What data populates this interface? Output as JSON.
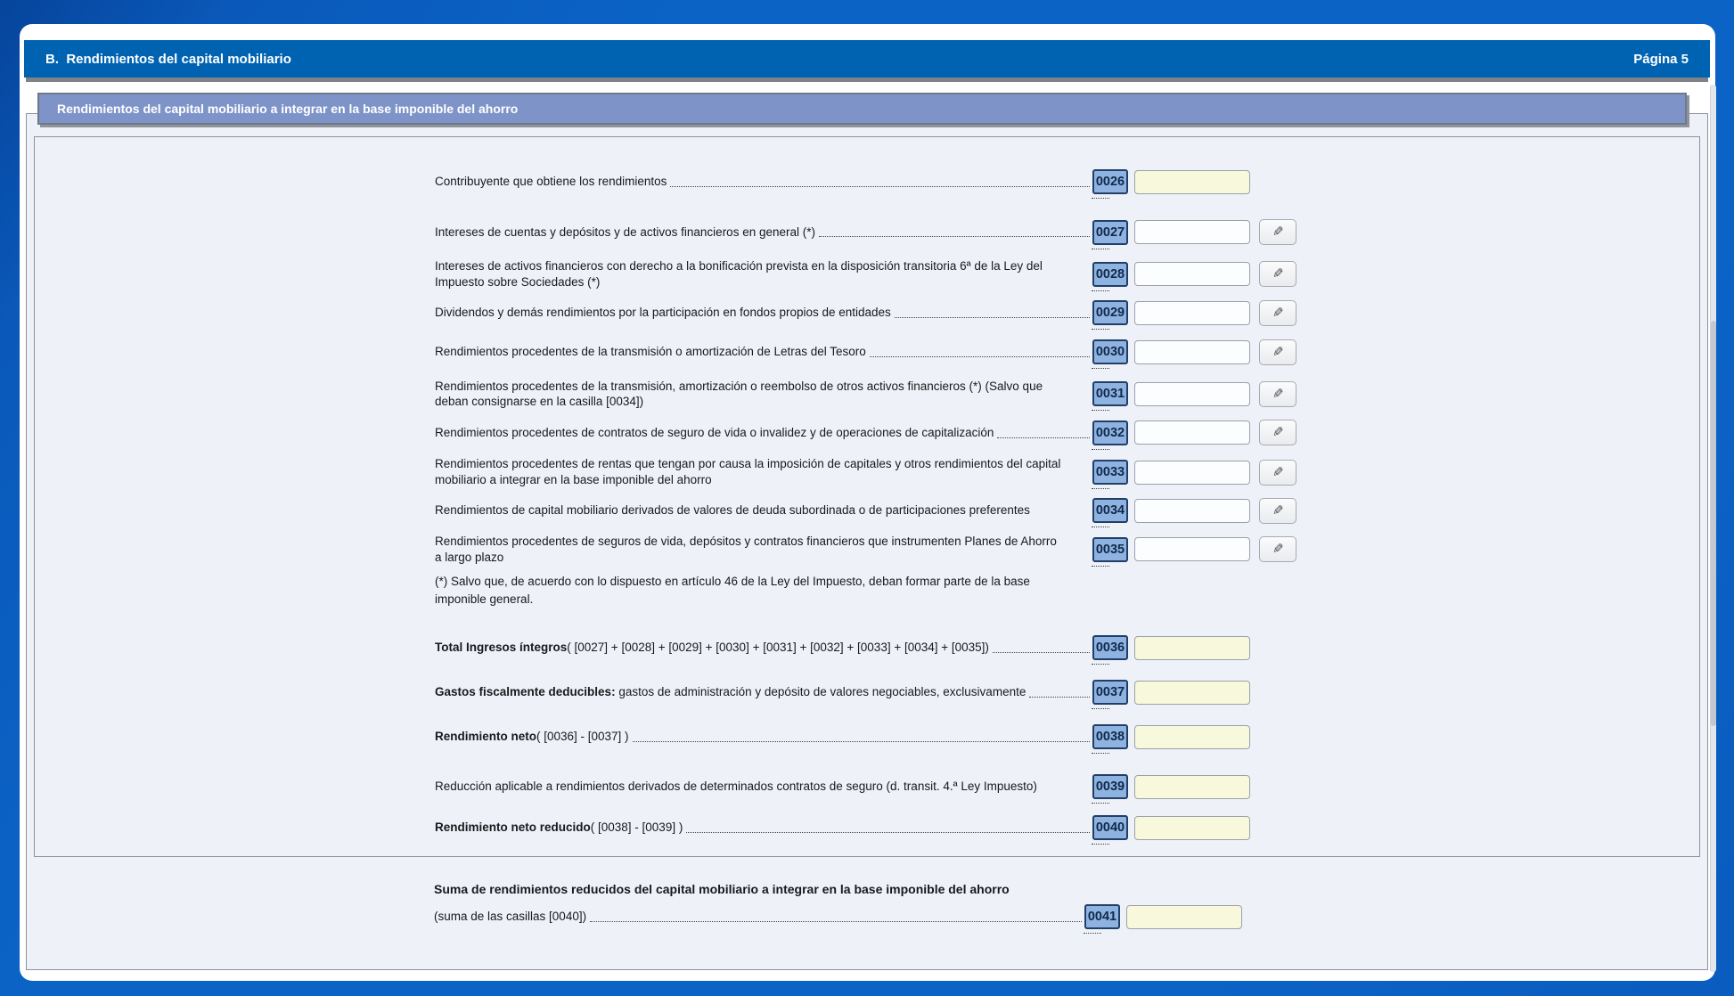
{
  "header": {
    "title": "B.  Rendimientos del capital mobiliario",
    "page": "Página 5"
  },
  "subheader": {
    "title": "Rendimientos del capital mobiliario a integrar en la base imponible del ahorro"
  },
  "icons": {
    "pencil": "✎"
  },
  "colors": {
    "background_blue": "#0B63C6",
    "header_blue": "#0063B2",
    "subheader_blue": "#7E94C9",
    "code_box_blue": "#8FB3E0",
    "readonly_field_yellow": "#F7F8DC",
    "editable_field_white": "#FCFDFF"
  },
  "rows": [
    {
      "code": "0026",
      "bold": "",
      "text": "Contribuyente que obtiene los rendimientos",
      "field": "yellow",
      "pencil": false,
      "leader": true,
      "value": ""
    },
    {
      "code": "0027",
      "bold": "",
      "text": "Intereses de cuentas y depósitos y de activos financieros en general (*)",
      "field": "white",
      "pencil": true,
      "leader": true,
      "value": ""
    },
    {
      "code": "0028",
      "bold": "",
      "text": "Intereses de activos financieros con derecho a la bonificación prevista en la disposición transitoria 6ª de la Ley del Impuesto sobre Sociedades (*)",
      "field": "white",
      "pencil": true,
      "leader": false,
      "value": ""
    },
    {
      "code": "0029",
      "bold": "",
      "text": "Dividendos y demás rendimientos por la participación en fondos propios de entidades",
      "field": "white",
      "pencil": true,
      "leader": true,
      "value": ""
    },
    {
      "code": "0030",
      "bold": "",
      "text": "Rendimientos procedentes de la transmisión o amortización de Letras del Tesoro",
      "field": "white",
      "pencil": true,
      "leader": true,
      "value": ""
    },
    {
      "code": "0031",
      "bold": "",
      "text": "Rendimientos procedentes de la transmisión, amortización o reembolso de otros activos financieros (*) (Salvo que deban consignarse en la casilla [0034])",
      "field": "white",
      "pencil": true,
      "leader": false,
      "value": ""
    },
    {
      "code": "0032",
      "bold": "",
      "text": "Rendimientos procedentes de contratos de seguro de vida o invalidez y de operaciones de capitalización",
      "field": "white",
      "pencil": true,
      "leader": true,
      "value": ""
    },
    {
      "code": "0033",
      "bold": "",
      "text": "Rendimientos procedentes de rentas que tengan por causa la imposición de capitales y otros rendimientos del capital mobiliario a integrar en la base imponible del ahorro",
      "field": "white",
      "pencil": true,
      "leader": false,
      "value": ""
    },
    {
      "code": "0034",
      "bold": "",
      "text": "Rendimientos de capital mobiliario derivados de valores de deuda subordinada o de participaciones preferentes",
      "field": "white",
      "pencil": true,
      "leader": false,
      "value": ""
    },
    {
      "code": "0035",
      "bold": "",
      "text": "Rendimientos procedentes de seguros de vida, depósitos y contratos financieros que instrumenten Planes de Ahorro a largo plazo",
      "field": "white",
      "pencil": true,
      "leader": false,
      "value": ""
    },
    {
      "type": "note",
      "text": "(*) Salvo que, de acuerdo con lo dispuesto en artículo 46 de la Ley del Impuesto, deban formar parte de la base imponible general."
    },
    {
      "code": "0036",
      "bold": "Total Ingresos íntegros",
      "text": "( [0027] + [0028] + [0029] + [0030] + [0031] + [0032] + [0033] + [0034] + [0035])",
      "field": "yellow",
      "pencil": false,
      "leader": true,
      "value": ""
    },
    {
      "code": "0037",
      "bold": "Gastos fiscalmente deducibles:",
      "text": " gastos de administración y depósito de valores negociables, exclusivamente",
      "field": "yellow",
      "pencil": false,
      "leader": true,
      "value": ""
    },
    {
      "code": "0038",
      "bold": "Rendimiento neto",
      "text": "( [0036] - [0037] )",
      "field": "yellow",
      "pencil": false,
      "leader": true,
      "value": ""
    },
    {
      "code": "0039",
      "bold": "",
      "text": "Reducción aplicable a rendimientos derivados de determinados contratos de seguro (d. transit. 4.ª Ley Impuesto)",
      "field": "yellow",
      "pencil": false,
      "leader": false,
      "value": ""
    },
    {
      "code": "0040",
      "bold": "Rendimiento neto reducido",
      "text": "( [0038] - [0039] )",
      "field": "yellow",
      "pencil": false,
      "leader": true,
      "value": ""
    }
  ],
  "summary": {
    "bold": "Suma de rendimientos reducidos del capital mobiliario a integrar en la base imponible del ahorro",
    "text": "(suma de las casillas [0040])",
    "code": "0041",
    "field": "yellow",
    "value": ""
  }
}
